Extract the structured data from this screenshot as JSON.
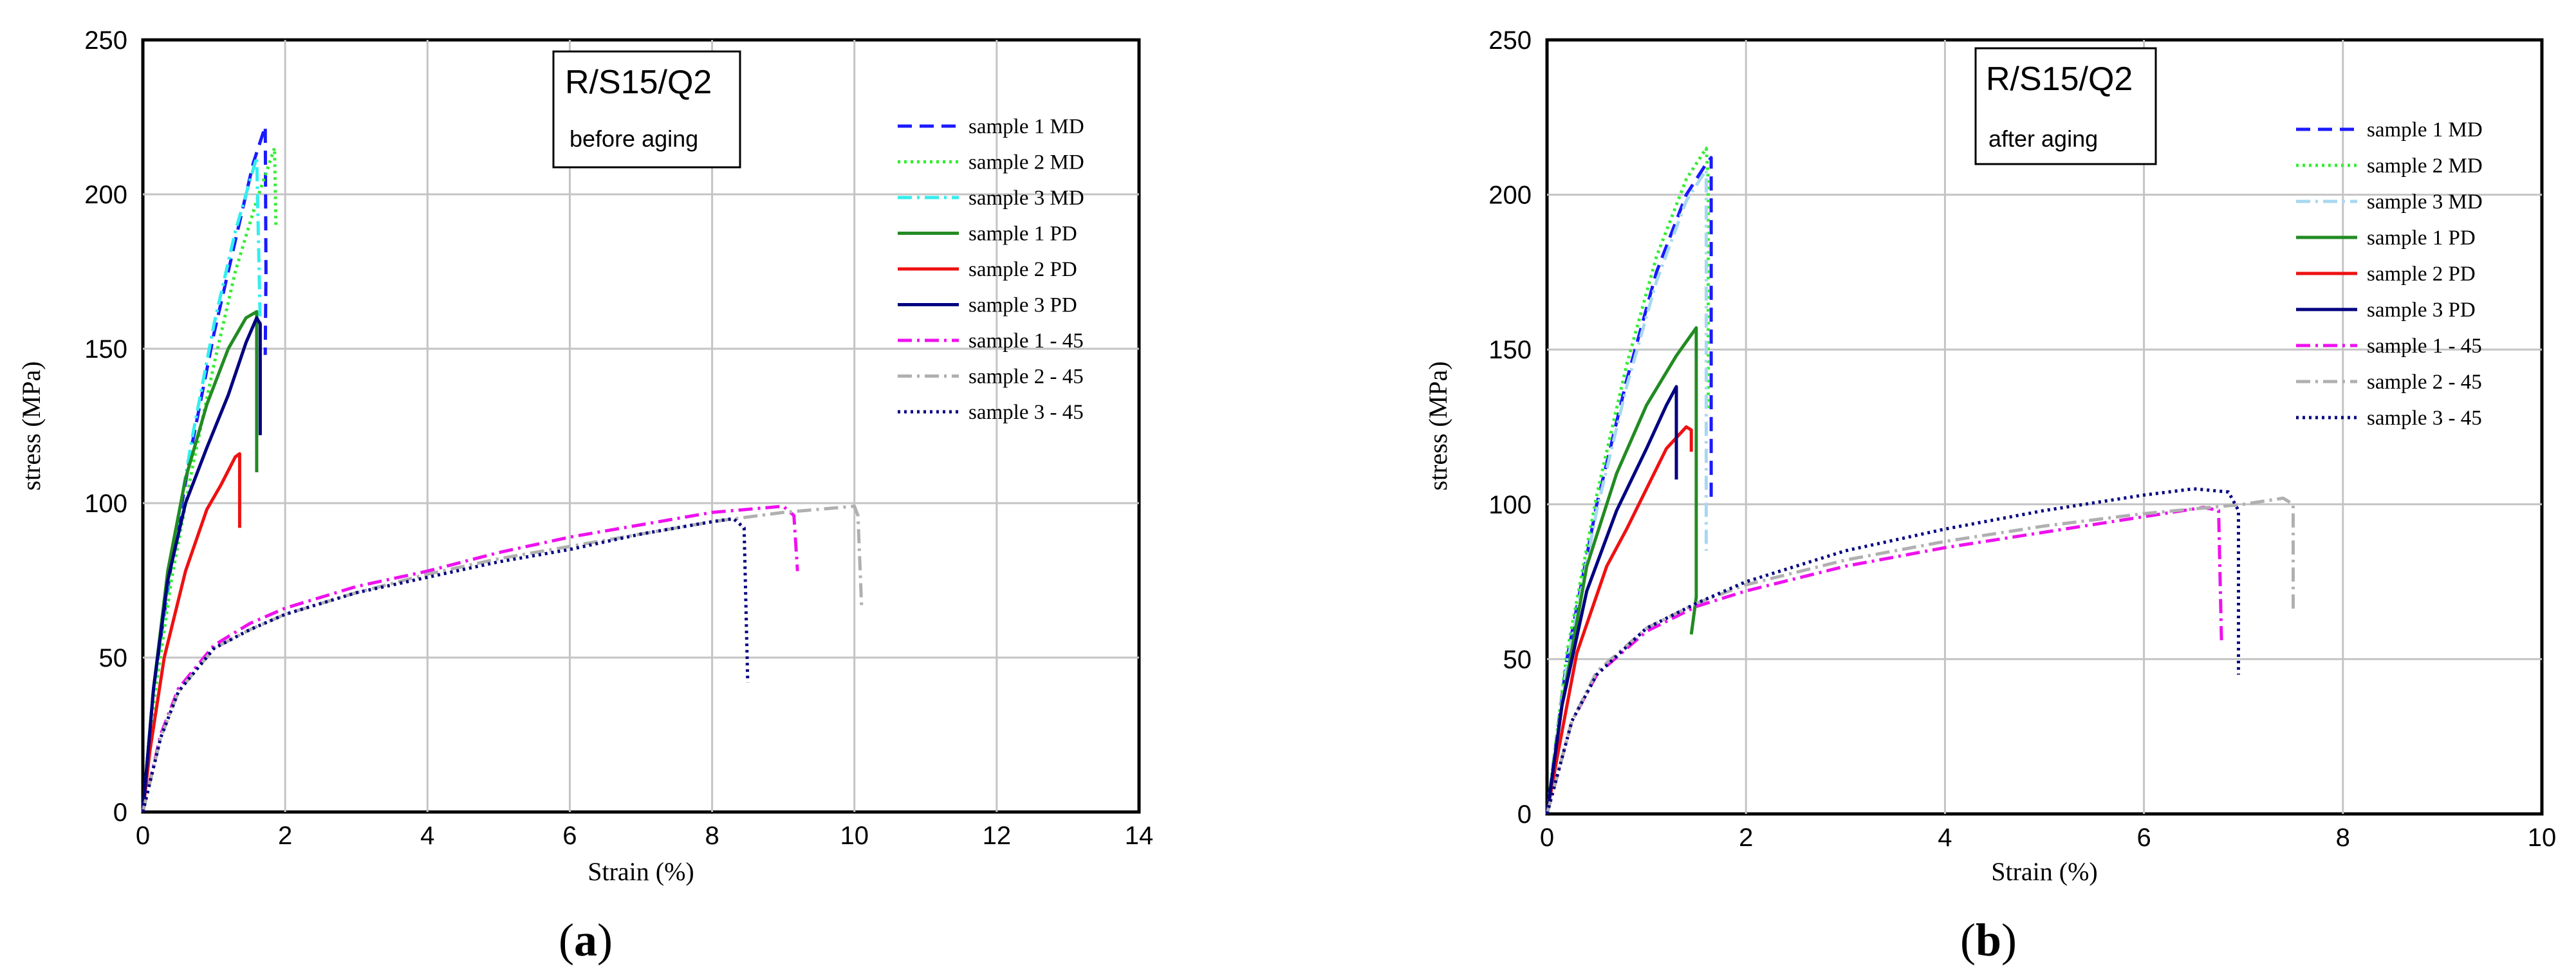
{
  "chart_data": [
    {
      "type": "line",
      "panel_label_open": "(",
      "panel_label_letter": "a",
      "panel_label_close": ")",
      "box_title": "R/S15/Q2",
      "box_subtitle": "before aging",
      "xlabel": "Strain (%)",
      "ylabel": "stress (MPa)",
      "xlim": [
        0,
        14
      ],
      "ylim": [
        0,
        250
      ],
      "xticks": [
        0,
        2,
        4,
        6,
        8,
        10,
        12,
        14
      ],
      "yticks": [
        0,
        50,
        100,
        150,
        200,
        250
      ],
      "grid": true,
      "legend_position": "top-right",
      "series": [
        {
          "name": "sample 1 MD",
          "color": "#1a1aff",
          "dash": "dashed",
          "points": [
            [
              0,
              0
            ],
            [
              0.15,
              40
            ],
            [
              0.4,
              80
            ],
            [
              0.7,
              120
            ],
            [
              1.0,
              155
            ],
            [
              1.3,
              185
            ],
            [
              1.55,
              210
            ],
            [
              1.72,
              222
            ],
            [
              1.73,
              175
            ],
            [
              1.72,
              148
            ]
          ]
        },
        {
          "name": "sample 2 MD",
          "color": "#33ee33",
          "dash": "dotted",
          "points": [
            [
              0,
              0
            ],
            [
              0.15,
              35
            ],
            [
              0.4,
              75
            ],
            [
              0.7,
              112
            ],
            [
              1.0,
              145
            ],
            [
              1.3,
              175
            ],
            [
              1.6,
              198
            ],
            [
              1.85,
              215
            ],
            [
              1.87,
              190
            ]
          ]
        },
        {
          "name": "sample 3 MD",
          "color": "#33eeee",
          "dash": "dashdot",
          "points": [
            [
              0,
              0
            ],
            [
              0.15,
              40
            ],
            [
              0.4,
              82
            ],
            [
              0.7,
              122
            ],
            [
              1.0,
              158
            ],
            [
              1.3,
              188
            ],
            [
              1.6,
              212
            ],
            [
              1.65,
              158
            ]
          ]
        },
        {
          "name": "sample 1 PD",
          "color": "#228b22",
          "dash": "solid",
          "points": [
            [
              0,
              0
            ],
            [
              0.15,
              40
            ],
            [
              0.35,
              78
            ],
            [
              0.6,
              108
            ],
            [
              0.9,
              132
            ],
            [
              1.2,
              150
            ],
            [
              1.45,
              160
            ],
            [
              1.6,
              162
            ],
            [
              1.6,
              110
            ]
          ]
        },
        {
          "name": "sample 2 PD",
          "color": "#ee1111",
          "dash": "solid",
          "points": [
            [
              0,
              0
            ],
            [
              0.1,
              20
            ],
            [
              0.3,
              50
            ],
            [
              0.6,
              78
            ],
            [
              0.9,
              98
            ],
            [
              1.1,
              106
            ],
            [
              1.3,
              115
            ],
            [
              1.36,
              116
            ],
            [
              1.36,
              92
            ]
          ]
        },
        {
          "name": "sample 3 PD",
          "color": "#000080",
          "dash": "solid",
          "points": [
            [
              0,
              0
            ],
            [
              0.15,
              40
            ],
            [
              0.35,
              75
            ],
            [
              0.6,
              100
            ],
            [
              0.9,
              118
            ],
            [
              1.2,
              135
            ],
            [
              1.45,
              152
            ],
            [
              1.6,
              160
            ],
            [
              1.65,
              158
            ],
            [
              1.65,
              122
            ]
          ]
        },
        {
          "name": "sample 1 - 45",
          "color": "#ee11ee",
          "dash": "dashdot",
          "points": [
            [
              0,
              0
            ],
            [
              0.25,
              25
            ],
            [
              0.5,
              40
            ],
            [
              1,
              54
            ],
            [
              1.5,
              61
            ],
            [
              2,
              66
            ],
            [
              3,
              73
            ],
            [
              4,
              78
            ],
            [
              5,
              84
            ],
            [
              6,
              89
            ],
            [
              7,
              93
            ],
            [
              8,
              97
            ],
            [
              9,
              99
            ],
            [
              9.15,
              96
            ],
            [
              9.2,
              78
            ]
          ]
        },
        {
          "name": "sample 2 - 45",
          "color": "#b0b0b0",
          "dash": "dashdot",
          "points": [
            [
              0,
              0
            ],
            [
              0.25,
              24
            ],
            [
              0.5,
              39
            ],
            [
              1,
              53
            ],
            [
              1.5,
              59
            ],
            [
              2,
              64
            ],
            [
              3,
              71
            ],
            [
              4,
              77
            ],
            [
              5,
              82
            ],
            [
              6,
              86
            ],
            [
              7,
              90
            ],
            [
              8,
              94
            ],
            [
              9,
              97
            ],
            [
              10,
              99
            ],
            [
              10.05,
              96
            ],
            [
              10.1,
              67
            ]
          ]
        },
        {
          "name": "sample 3 - 45",
          "color": "#000080",
          "dash": "dotted",
          "points": [
            [
              0,
              0
            ],
            [
              0.25,
              24
            ],
            [
              0.5,
              39
            ],
            [
              1,
              53
            ],
            [
              1.5,
              59
            ],
            [
              2,
              64
            ],
            [
              3,
              71
            ],
            [
              4,
              76
            ],
            [
              5,
              81
            ],
            [
              6,
              85
            ],
            [
              7,
              90
            ],
            [
              8,
              94
            ],
            [
              8.3,
              95
            ],
            [
              8.45,
              92
            ],
            [
              8.5,
              42
            ]
          ]
        }
      ]
    },
    {
      "type": "line",
      "panel_label_open": "(",
      "panel_label_letter": "b",
      "panel_label_close": ")",
      "box_title": "R/S15/Q2",
      "box_subtitle": "after aging",
      "xlabel": "Strain (%)",
      "ylabel": "stress (MPa)",
      "xlim": [
        0,
        10
      ],
      "ylim": [
        0,
        250
      ],
      "xticks": [
        0,
        2,
        4,
        6,
        8,
        10
      ],
      "yticks": [
        0,
        50,
        100,
        150,
        200,
        250
      ],
      "grid": true,
      "legend_position": "top-right",
      "series": [
        {
          "name": "sample 1 MD",
          "color": "#1a1aff",
          "dash": "dashed",
          "points": [
            [
              0,
              0
            ],
            [
              0.2,
              50
            ],
            [
              0.5,
              100
            ],
            [
              0.8,
              140
            ],
            [
              1.1,
              175
            ],
            [
              1.4,
              200
            ],
            [
              1.6,
              210
            ],
            [
              1.65,
              212
            ],
            [
              1.65,
              100
            ]
          ]
        },
        {
          "name": "sample 2 MD",
          "color": "#33ee33",
          "dash": "dotted",
          "points": [
            [
              0,
              0
            ],
            [
              0.2,
              52
            ],
            [
              0.5,
              103
            ],
            [
              0.8,
              145
            ],
            [
              1.1,
              180
            ],
            [
              1.4,
              205
            ],
            [
              1.6,
              215
            ],
            [
              1.62,
              205
            ],
            [
              1.62,
              130
            ]
          ]
        },
        {
          "name": "sample 3 MD",
          "color": "#a8d8f0",
          "dash": "dashdot",
          "points": [
            [
              0,
              0
            ],
            [
              0.2,
              48
            ],
            [
              0.5,
              98
            ],
            [
              0.8,
              138
            ],
            [
              1.1,
              172
            ],
            [
              1.4,
              198
            ],
            [
              1.6,
              208
            ],
            [
              1.6,
              85
            ]
          ]
        },
        {
          "name": "sample 1 PD",
          "color": "#228b22",
          "dash": "solid",
          "points": [
            [
              0,
              0
            ],
            [
              0.15,
              35
            ],
            [
              0.4,
              80
            ],
            [
              0.7,
              110
            ],
            [
              1.0,
              132
            ],
            [
              1.3,
              148
            ],
            [
              1.5,
              157
            ],
            [
              1.5,
              70
            ],
            [
              1.45,
              58
            ]
          ]
        },
        {
          "name": "sample 2 PD",
          "color": "#ee1111",
          "dash": "solid",
          "points": [
            [
              0,
              0
            ],
            [
              0.1,
              18
            ],
            [
              0.3,
              52
            ],
            [
              0.6,
              80
            ],
            [
              0.8,
              92
            ],
            [
              1.0,
              105
            ],
            [
              1.2,
              118
            ],
            [
              1.4,
              125
            ],
            [
              1.45,
              124
            ],
            [
              1.45,
              117
            ]
          ]
        },
        {
          "name": "sample 3 PD",
          "color": "#000080",
          "dash": "solid",
          "points": [
            [
              0,
              0
            ],
            [
              0.15,
              35
            ],
            [
              0.4,
              72
            ],
            [
              0.7,
              98
            ],
            [
              1.0,
              118
            ],
            [
              1.2,
              132
            ],
            [
              1.3,
              138
            ],
            [
              1.3,
              108
            ]
          ]
        },
        {
          "name": "sample 1 - 45",
          "color": "#ee11ee",
          "dash": "dashdot",
          "points": [
            [
              0,
              0
            ],
            [
              0.25,
              30
            ],
            [
              0.5,
              45
            ],
            [
              1,
              59
            ],
            [
              1.5,
              67
            ],
            [
              2,
              72
            ],
            [
              3,
              80
            ],
            [
              4,
              86
            ],
            [
              5,
              91
            ],
            [
              6,
              96
            ],
            [
              6.6,
              99
            ],
            [
              6.75,
              98
            ],
            [
              6.78,
              55
            ]
          ]
        },
        {
          "name": "sample 2 - 45",
          "color": "#b0b0b0",
          "dash": "dashdot",
          "points": [
            [
              0,
              0
            ],
            [
              0.25,
              30
            ],
            [
              0.5,
              46
            ],
            [
              1,
              60
            ],
            [
              1.5,
              68
            ],
            [
              2,
              74
            ],
            [
              3,
              82
            ],
            [
              4,
              88
            ],
            [
              5,
              93
            ],
            [
              6,
              97
            ],
            [
              7,
              100
            ],
            [
              7.4,
              102
            ],
            [
              7.5,
              100
            ],
            [
              7.5,
              65
            ]
          ]
        },
        {
          "name": "sample 3 - 45",
          "color": "#000080",
          "dash": "dotted",
          "points": [
            [
              0,
              0
            ],
            [
              0.25,
              30
            ],
            [
              0.5,
              45
            ],
            [
              1,
              60
            ],
            [
              1.5,
              68
            ],
            [
              2,
              75
            ],
            [
              3,
              85
            ],
            [
              4,
              92
            ],
            [
              5,
              98
            ],
            [
              6,
              103
            ],
            [
              6.5,
              105
            ],
            [
              6.85,
              104
            ],
            [
              6.95,
              98
            ],
            [
              6.95,
              45
            ]
          ]
        }
      ]
    }
  ]
}
